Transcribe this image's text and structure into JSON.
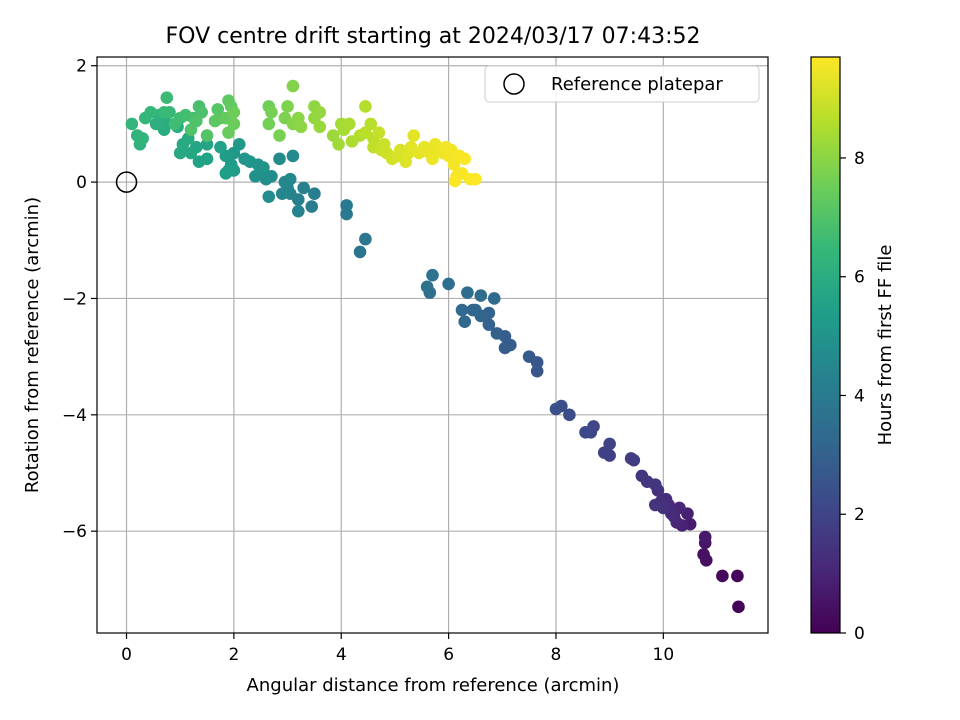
{
  "chart_data": {
    "type": "scatter",
    "title": "FOV centre drift starting at 2024/03/17 07:43:52",
    "xlabel": "Angular distance from reference (arcmin)",
    "ylabel": "Rotation from reference (arcmin)",
    "xlim": [
      -0.55,
      11.95
    ],
    "ylim": [
      -7.75,
      2.15
    ],
    "xticks": [
      0,
      2,
      4,
      6,
      8,
      10
    ],
    "yticks": [
      -6,
      -4,
      -2,
      0,
      2
    ],
    "grid": true,
    "legend": {
      "position": "top-right",
      "label": "Reference platepar",
      "marker": "open-circle"
    },
    "reference_point": {
      "x": 0.0,
      "y": 0.0
    },
    "colorbar": {
      "label": "Hours from first FF file",
      "colormap": "viridis",
      "range": [
        0,
        9.7
      ],
      "ticks": [
        0,
        2,
        4,
        6,
        8
      ]
    },
    "colormap_stops": [
      "#440154",
      "#482878",
      "#3e4989",
      "#31688e",
      "#26828e",
      "#1f9e89",
      "#35b779",
      "#6ece58",
      "#b5de2b",
      "#fde725"
    ],
    "series": [
      {
        "note_keys": "each point: [x, y, hours]",
        "points": [
          [
            11.4,
            -7.3,
            0.05
          ],
          [
            11.38,
            -6.77,
            0.15
          ],
          [
            11.1,
            -6.77,
            0.25
          ],
          [
            10.8,
            -6.5,
            0.35
          ],
          [
            10.75,
            -6.4,
            0.45
          ],
          [
            10.78,
            -6.2,
            0.55
          ],
          [
            10.78,
            -6.1,
            0.65
          ],
          [
            10.5,
            -5.88,
            0.75
          ],
          [
            10.45,
            -5.7,
            0.85
          ],
          [
            10.35,
            -5.9,
            0.95
          ],
          [
            10.25,
            -5.85,
            1.0
          ],
          [
            10.3,
            -5.6,
            1.05
          ],
          [
            10.2,
            -5.75,
            1.1
          ],
          [
            10.1,
            -5.55,
            1.15
          ],
          [
            10.15,
            -5.7,
            1.2
          ],
          [
            10.05,
            -5.45,
            1.25
          ],
          [
            9.95,
            -5.5,
            1.3
          ],
          [
            9.9,
            -5.3,
            1.35
          ],
          [
            10.0,
            -5.6,
            1.4
          ],
          [
            9.85,
            -5.55,
            1.45
          ],
          [
            9.85,
            -5.2,
            1.5
          ],
          [
            9.7,
            -5.15,
            1.55
          ],
          [
            9.6,
            -5.05,
            1.6
          ],
          [
            9.4,
            -4.75,
            1.7
          ],
          [
            9.45,
            -4.78,
            1.75
          ],
          [
            9.0,
            -4.7,
            1.85
          ],
          [
            8.9,
            -4.65,
            1.9
          ],
          [
            9.0,
            -4.5,
            1.95
          ],
          [
            8.65,
            -4.3,
            2.05
          ],
          [
            8.7,
            -4.2,
            2.1
          ],
          [
            8.55,
            -4.3,
            2.15
          ],
          [
            8.25,
            -4.0,
            2.3
          ],
          [
            8.1,
            -3.85,
            2.35
          ],
          [
            8.0,
            -3.9,
            2.4
          ],
          [
            7.65,
            -3.25,
            2.6
          ],
          [
            7.65,
            -3.1,
            2.65
          ],
          [
            7.5,
            -3.0,
            2.7
          ],
          [
            7.15,
            -2.8,
            2.8
          ],
          [
            7.05,
            -2.85,
            2.85
          ],
          [
            7.05,
            -2.65,
            2.9
          ],
          [
            6.9,
            -2.6,
            2.95
          ],
          [
            6.75,
            -2.45,
            3.0
          ],
          [
            6.75,
            -2.25,
            3.05
          ],
          [
            6.6,
            -2.3,
            3.1
          ],
          [
            6.45,
            -2.2,
            3.15
          ],
          [
            6.5,
            -2.2,
            3.2
          ],
          [
            6.3,
            -2.4,
            3.25
          ],
          [
            6.25,
            -2.2,
            3.3
          ],
          [
            6.85,
            -2.0,
            3.35
          ],
          [
            6.6,
            -1.95,
            3.4
          ],
          [
            6.35,
            -1.9,
            3.45
          ],
          [
            6.0,
            -1.75,
            3.5
          ],
          [
            5.65,
            -1.9,
            3.55
          ],
          [
            5.6,
            -1.8,
            3.6
          ],
          [
            5.7,
            -1.6,
            3.65
          ],
          [
            4.35,
            -1.2,
            3.8
          ],
          [
            4.45,
            -0.98,
            3.85
          ],
          [
            4.1,
            -0.55,
            3.95
          ],
          [
            4.1,
            -0.4,
            4.0
          ],
          [
            3.5,
            -0.2,
            4.1
          ],
          [
            3.45,
            -0.42,
            4.15
          ],
          [
            3.2,
            -0.3,
            4.2
          ],
          [
            3.3,
            -0.1,
            4.25
          ],
          [
            3.2,
            -0.5,
            4.3
          ],
          [
            3.05,
            -0.2,
            4.35
          ],
          [
            3.0,
            -0.1,
            4.4
          ],
          [
            2.9,
            -0.2,
            4.45
          ],
          [
            2.95,
            0.0,
            4.5
          ],
          [
            3.05,
            0.05,
            4.55
          ],
          [
            3.1,
            0.45,
            4.6
          ],
          [
            2.85,
            0.4,
            4.65
          ],
          [
            2.65,
            -0.25,
            4.7
          ],
          [
            2.7,
            0.1,
            4.75
          ],
          [
            2.6,
            0.05,
            4.8
          ],
          [
            2.5,
            0.2,
            4.85
          ],
          [
            2.4,
            0.1,
            4.9
          ],
          [
            2.55,
            0.25,
            4.95
          ],
          [
            2.45,
            0.3,
            5.0
          ],
          [
            2.3,
            0.35,
            5.05
          ],
          [
            2.2,
            0.4,
            5.1
          ],
          [
            2.1,
            0.65,
            5.15
          ],
          [
            2.0,
            0.5,
            5.2
          ],
          [
            1.95,
            0.3,
            5.25
          ],
          [
            2.0,
            0.2,
            5.3
          ],
          [
            1.85,
            0.45,
            5.35
          ],
          [
            1.9,
            0.2,
            5.4
          ],
          [
            1.85,
            0.15,
            5.45
          ],
          [
            1.75,
            0.6,
            5.5
          ],
          [
            1.5,
            0.4,
            5.55
          ],
          [
            1.35,
            0.35,
            5.6
          ],
          [
            1.5,
            0.65,
            5.65
          ],
          [
            1.3,
            0.6,
            5.7
          ],
          [
            1.2,
            0.5,
            5.75
          ],
          [
            1.0,
            0.5,
            5.8
          ],
          [
            1.05,
            0.65,
            5.85
          ],
          [
            1.15,
            0.75,
            5.9
          ],
          [
            0.95,
            0.95,
            5.95
          ],
          [
            0.75,
            1.0,
            6.0
          ],
          [
            0.7,
            0.9,
            6.05
          ],
          [
            0.55,
            1.0,
            6.1
          ],
          [
            0.6,
            1.15,
            6.15
          ],
          [
            0.25,
            0.65,
            6.2
          ],
          [
            0.2,
            0.8,
            6.25
          ],
          [
            0.3,
            0.75,
            6.3
          ],
          [
            0.1,
            1.0,
            6.35
          ],
          [
            0.35,
            1.1,
            6.4
          ],
          [
            0.45,
            1.2,
            6.45
          ],
          [
            0.8,
            1.2,
            6.5
          ],
          [
            0.7,
            1.2,
            6.55
          ],
          [
            0.75,
            1.45,
            6.6
          ],
          [
            0.9,
            1.0,
            6.65
          ],
          [
            1.0,
            1.1,
            6.7
          ],
          [
            1.1,
            1.15,
            6.75
          ],
          [
            1.25,
            1.1,
            6.8
          ],
          [
            1.35,
            1.3,
            6.85
          ],
          [
            1.4,
            1.2,
            6.9
          ],
          [
            1.3,
            1.05,
            6.95
          ],
          [
            1.2,
            0.9,
            7.0
          ],
          [
            1.5,
            0.8,
            7.05
          ],
          [
            1.7,
            1.25,
            7.1
          ],
          [
            1.75,
            1.1,
            7.15
          ],
          [
            1.65,
            1.05,
            7.2
          ],
          [
            1.9,
            1.4,
            7.25
          ],
          [
            1.95,
            1.3,
            7.3
          ],
          [
            1.85,
            1.1,
            7.35
          ],
          [
            1.9,
            0.85,
            7.4
          ],
          [
            2.0,
            1.0,
            7.45
          ],
          [
            2.0,
            1.2,
            7.5
          ],
          [
            2.65,
            1.3,
            7.55
          ],
          [
            2.65,
            1.0,
            7.6
          ],
          [
            2.7,
            1.2,
            7.65
          ],
          [
            2.85,
            0.8,
            7.7
          ],
          [
            2.95,
            1.1,
            7.75
          ],
          [
            3.0,
            1.3,
            7.8
          ],
          [
            3.1,
            1.65,
            7.85
          ],
          [
            3.1,
            1.0,
            7.9
          ],
          [
            3.2,
            1.1,
            7.95
          ],
          [
            3.25,
            0.95,
            8.0
          ],
          [
            3.5,
            1.3,
            8.05
          ],
          [
            3.5,
            1.1,
            8.1
          ],
          [
            3.6,
            1.2,
            8.15
          ],
          [
            3.6,
            0.95,
            8.2
          ],
          [
            3.85,
            0.8,
            8.25
          ],
          [
            3.95,
            0.65,
            8.3
          ],
          [
            4.0,
            1.0,
            8.35
          ],
          [
            4.05,
            0.9,
            8.4
          ],
          [
            4.15,
            1.0,
            8.45
          ],
          [
            4.2,
            0.7,
            8.5
          ],
          [
            4.35,
            0.8,
            8.55
          ],
          [
            4.45,
            1.3,
            8.6
          ],
          [
            4.55,
            1.0,
            8.65
          ],
          [
            4.45,
            0.85,
            8.7
          ],
          [
            4.6,
            0.75,
            8.75
          ],
          [
            4.6,
            0.6,
            8.8
          ],
          [
            4.7,
            0.85,
            8.85
          ],
          [
            4.75,
            0.55,
            8.9
          ],
          [
            4.8,
            0.65,
            8.95
          ],
          [
            4.85,
            0.5,
            9.0
          ],
          [
            4.95,
            0.4,
            9.05
          ],
          [
            5.05,
            0.45,
            9.1
          ],
          [
            5.1,
            0.55,
            9.15
          ],
          [
            5.2,
            0.35,
            9.2
          ],
          [
            5.25,
            0.5,
            9.25
          ],
          [
            5.3,
            0.6,
            9.3
          ],
          [
            5.35,
            0.8,
            9.32
          ],
          [
            5.45,
            0.5,
            9.35
          ],
          [
            5.55,
            0.6,
            9.38
          ],
          [
            5.65,
            0.5,
            9.4
          ],
          [
            5.75,
            0.65,
            9.42
          ],
          [
            5.7,
            0.4,
            9.44
          ],
          [
            5.85,
            0.55,
            9.46
          ],
          [
            5.9,
            0.5,
            9.48
          ],
          [
            5.95,
            0.6,
            9.5
          ],
          [
            6.0,
            0.45,
            9.52
          ],
          [
            6.05,
            0.55,
            9.54
          ],
          [
            6.1,
            0.3,
            9.56
          ],
          [
            6.15,
            0.1,
            9.58
          ],
          [
            6.2,
            0.45,
            9.6
          ],
          [
            6.25,
            0.15,
            9.62
          ],
          [
            6.3,
            0.4,
            9.64
          ],
          [
            6.4,
            0.05,
            9.66
          ],
          [
            6.5,
            0.05,
            9.68
          ],
          [
            6.12,
            0.02,
            9.7
          ]
        ]
      }
    ]
  }
}
